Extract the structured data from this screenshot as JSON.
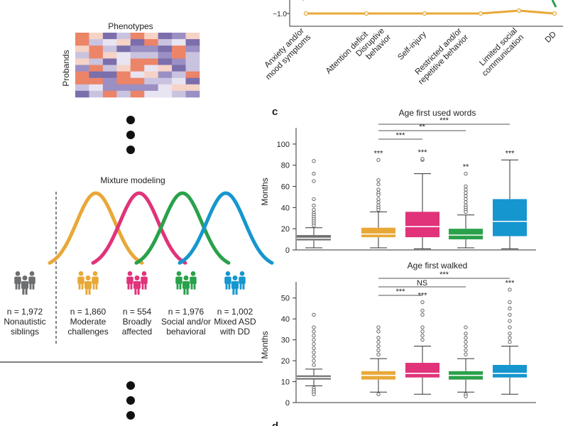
{
  "colors": {
    "grey": "#6d6e70",
    "orange": "#e8a838",
    "magenta": "#e0337a",
    "green": "#2aa14b",
    "blue": "#1696cf",
    "heat_purple": "#7b6eab",
    "heat_light_purple": "#c9c3e0",
    "heat_salmon": "#ec8468",
    "heat_pale": "#f6d3c7"
  },
  "left_panel": {
    "phenotypes_label": "Phenotypes",
    "probands_label": "Probands",
    "heatmap_icon": "phenotype-heatmap",
    "mixture_label": "Mixture modeling",
    "groups": [
      {
        "n_text": "n = 1,972",
        "line1": "Nonautistic",
        "line2": "siblings",
        "color_key": "grey",
        "icon": "people-icon"
      },
      {
        "n_text": "n = 1,860",
        "line1": "Moderate",
        "line2": "challenges",
        "color_key": "orange",
        "icon": "people-icon"
      },
      {
        "n_text": "n = 554",
        "line1": "Broadly",
        "line2": "affected",
        "color_key": "magenta",
        "icon": "people-icon"
      },
      {
        "n_text": "n = 1,976",
        "line1": "Social and/or",
        "line2": "behavioral",
        "color_key": "green",
        "icon": "people-icon"
      },
      {
        "n_text": "n = 1,002",
        "line1": "Mixed ASD",
        "line2": "with DD",
        "color_key": "blue",
        "icon": "people-icon"
      }
    ]
  },
  "panel_b_fragment": {
    "y_tick_label": "−1.0",
    "categories": [
      "Anxiety and/or mood symptoms",
      "Attention deficit",
      "Disruptive behavior",
      "Self-injury",
      "Restricted and/or repetitive behavior",
      "Limited social communication",
      "DD"
    ],
    "category_lines": [
      [
        "Anxiety and/or",
        "mood symptoms"
      ],
      [
        "Attention deficit"
      ],
      [
        "Disruptive",
        "behavior"
      ],
      [
        "Self-injury"
      ],
      [
        "Restricted and/or",
        "repetitive behavior"
      ],
      [
        "Limited social",
        "communication"
      ],
      [
        "DD"
      ]
    ]
  },
  "panel_c_label": "c",
  "panel_d_label": "d",
  "chart_data": [
    {
      "type": "box",
      "title": "Age first used words",
      "ylabel": "Months",
      "ylim": [
        0,
        110
      ],
      "yticks": [
        0,
        20,
        40,
        60,
        80,
        100
      ],
      "groups": [
        "Nonautistic siblings",
        "Moderate challenges",
        "Broadly affected",
        "Social and/or behavioral",
        "Mixed ASD with DD"
      ],
      "color_keys": [
        "grey",
        "orange",
        "magenta",
        "green",
        "blue"
      ],
      "boxes": [
        {
          "min": 2,
          "q1": 9,
          "median": 11,
          "q3": 14,
          "max": 21,
          "outliers": [
            84,
            72,
            65,
            48,
            42,
            38,
            35,
            33,
            31,
            29,
            27,
            25,
            23
          ]
        },
        {
          "min": 2,
          "q1": 12,
          "median": 15,
          "q3": 21,
          "max": 36,
          "outliers": [
            85,
            66,
            62,
            57,
            54,
            52,
            48,
            45,
            42,
            40,
            38
          ]
        },
        {
          "min": 1,
          "q1": 12,
          "median": 22,
          "q3": 36,
          "max": 72,
          "outliers": [
            85,
            86
          ]
        },
        {
          "min": 2,
          "q1": 10,
          "median": 14,
          "q3": 20,
          "max": 33,
          "outliers": [
            72,
            60,
            57,
            54,
            51,
            48,
            45,
            42,
            40,
            38,
            36
          ]
        },
        {
          "min": 1,
          "q1": 13,
          "median": 27,
          "q3": 48,
          "max": 85,
          "outliers": []
        }
      ],
      "sig_above_boxes": [
        "",
        "***",
        "***",
        "**",
        "***"
      ],
      "brackets": [
        {
          "from": 1,
          "to": 4,
          "label": "***"
        },
        {
          "from": 1,
          "to": 3,
          "label": "**"
        },
        {
          "from": 1,
          "to": 2,
          "label": "***"
        }
      ]
    },
    {
      "type": "box",
      "title": "Age first walked",
      "ylabel": "Months",
      "ylim": [
        0,
        55
      ],
      "yticks": [
        0,
        10,
        20,
        30,
        40,
        50
      ],
      "groups": [
        "Nonautistic siblings",
        "Moderate challenges",
        "Broadly affected",
        "Social and/or behavioral",
        "Mixed ASD with DD"
      ],
      "color_keys": [
        "grey",
        "orange",
        "magenta",
        "green",
        "blue"
      ],
      "boxes": [
        {
          "min": 8,
          "q1": 11,
          "median": 12,
          "q3": 13,
          "max": 16,
          "outliers": [
            42,
            36,
            34,
            32,
            30,
            28,
            26,
            24,
            22,
            20,
            18,
            7,
            6,
            5,
            4
          ]
        },
        {
          "min": 5,
          "q1": 11,
          "median": 13,
          "q3": 15,
          "max": 21,
          "outliers": [
            36,
            34,
            31,
            29,
            27,
            25,
            23,
            4
          ]
        },
        {
          "min": 4,
          "q1": 12,
          "median": 14,
          "q3": 19,
          "max": 27,
          "outliers": [
            48,
            44,
            42,
            36,
            34,
            32,
            30
          ]
        },
        {
          "min": 5,
          "q1": 11,
          "median": 13,
          "q3": 15,
          "max": 21,
          "outliers": [
            36,
            33,
            31,
            29,
            27,
            25,
            23,
            4,
            3
          ]
        },
        {
          "min": 4,
          "q1": 12,
          "median": 14,
          "q3": 18,
          "max": 27,
          "outliers": [
            54,
            48,
            45,
            42,
            39,
            36,
            33,
            31,
            29
          ]
        }
      ],
      "sig_above_boxes": [
        "",
        "",
        "***",
        "",
        "***"
      ],
      "brackets": [
        {
          "from": 1,
          "to": 4,
          "label": "***"
        },
        {
          "from": 1,
          "to": 3,
          "label": "NS"
        },
        {
          "from": 1,
          "to": 2,
          "label": "***"
        }
      ]
    }
  ]
}
